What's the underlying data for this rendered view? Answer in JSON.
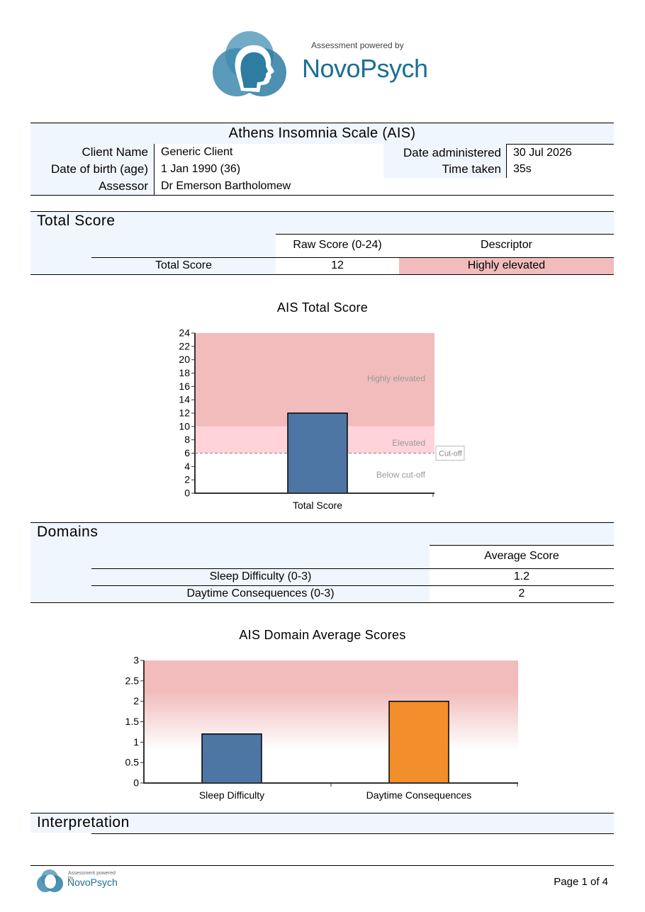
{
  "header": {
    "logo_powered": "Assessment powered by",
    "logo_brand": "NovoPsych"
  },
  "report": {
    "title": "Athens Insomnia Scale (AIS)",
    "fields": {
      "client_name_label": "Client Name",
      "client_name": "Generic Client",
      "dob_label": "Date of birth (age)",
      "dob": "1 Jan 1990 (36)",
      "assessor_label": "Assessor",
      "assessor": "Dr Emerson Bartholomew",
      "date_label": "Date administered",
      "date": "30 Jul 2026",
      "time_label": "Time taken",
      "time": "35s"
    }
  },
  "total_score": {
    "heading": "Total Score",
    "col_raw": "Raw Score (0-24)",
    "col_desc": "Descriptor",
    "row_label": "Total Score",
    "raw": "12",
    "descriptor": "Highly elevated",
    "descriptor_color": "#f2bcbc"
  },
  "domains": {
    "heading": "Domains",
    "col_avg": "Average Score",
    "rows": [
      {
        "label": "Sleep Difficulty (0-3)",
        "value": "1.2"
      },
      {
        "label": "Daytime Consequences (0-3)",
        "value": "2"
      }
    ]
  },
  "interpretation": {
    "heading": "Interpretation"
  },
  "footer": {
    "logo_powered": "Assessment powered by",
    "logo_brand": "NovoPsych",
    "page": "Page 1 of 4"
  },
  "chart_data": [
    {
      "type": "bar",
      "title": "AIS Total Score",
      "categories": [
        "Total Score"
      ],
      "values": [
        12
      ],
      "ylim": [
        0,
        24
      ],
      "yticks": [
        0,
        2,
        4,
        6,
        8,
        10,
        12,
        14,
        16,
        18,
        20,
        22,
        24
      ],
      "bands": [
        {
          "label": "Highly elevated",
          "from": 10,
          "to": 24,
          "color": "#f2bcbc"
        },
        {
          "label": "Elevated",
          "from": 6,
          "to": 10,
          "color": "#ffd3d8"
        },
        {
          "label": "Below cut-off",
          "from": 0,
          "to": 6,
          "color": "#ffffff"
        }
      ],
      "cutoff": {
        "value": 6,
        "label": "Cut-off"
      },
      "bar_colors": [
        "#4e76a5"
      ]
    },
    {
      "type": "bar",
      "title": "AIS Domain Average Scores",
      "categories": [
        "Sleep Difficulty",
        "Daytime Consequences"
      ],
      "values": [
        1.2,
        2
      ],
      "ylim": [
        0,
        3
      ],
      "yticks": [
        0,
        0.5,
        1,
        1.5,
        2,
        2.5,
        3
      ],
      "gradient_band": {
        "from": 3,
        "fade_to": 0.8,
        "color": "#f2bcbc"
      },
      "bar_colors": [
        "#4e76a5",
        "#f28e2b"
      ]
    }
  ]
}
